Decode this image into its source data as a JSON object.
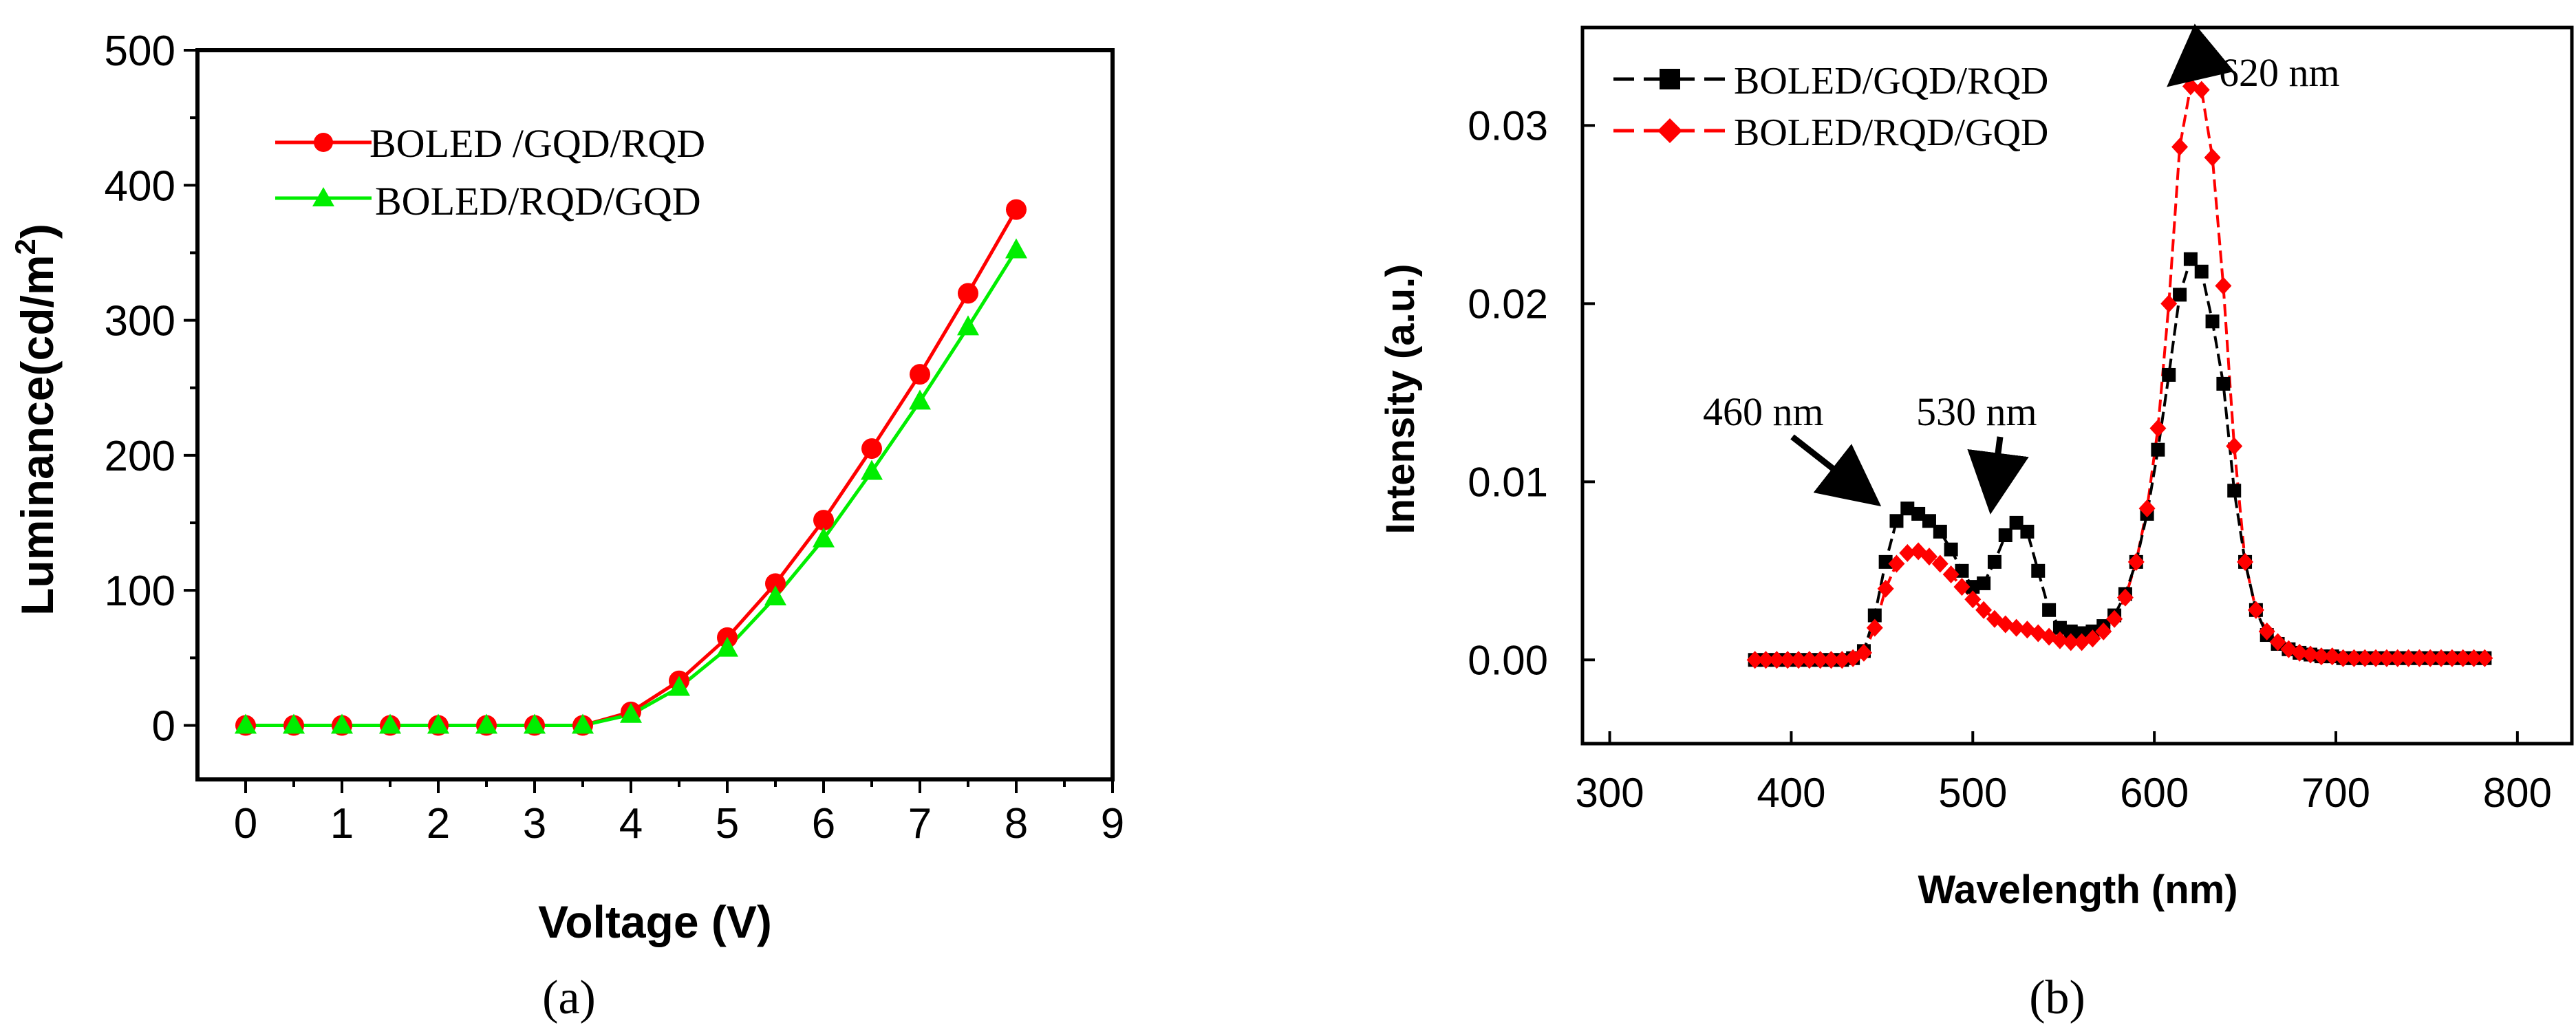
{
  "panels": {
    "a_label": "(a)",
    "b_label": "(b)"
  },
  "colors": {
    "red": "#ff0000",
    "green": "#00ee00",
    "black": "#000000",
    "axis": "#000000"
  },
  "chart_data": [
    {
      "id": "a",
      "type": "line",
      "title": "",
      "xlabel": "Voltage (V)",
      "ylabel": "Luminance(cd/m²)",
      "ylabel_main": "Luminance(cd/m",
      "ylabel_sup": "2",
      "ylabel_close": ")",
      "xlim": [
        -0.5,
        9
      ],
      "ylim": [
        -40,
        500
      ],
      "xticks": [
        0,
        0.5,
        1,
        1.5,
        2,
        2.5,
        3,
        3.5,
        4,
        4.5,
        5,
        5.5,
        6,
        6.5,
        7,
        7.5,
        8,
        8.5,
        9
      ],
      "xtick_labels": [
        "0",
        "1",
        "2",
        "3",
        "4",
        "5",
        "6",
        "7",
        "8",
        "9"
      ],
      "xtick_label_values": [
        0,
        1,
        2,
        3,
        4,
        5,
        6,
        7,
        8,
        9
      ],
      "yticks": [
        0,
        100,
        200,
        300,
        400,
        500
      ],
      "ytick_labels": [
        "0",
        "100",
        "200",
        "300",
        "400",
        "500"
      ],
      "legend_position": "top-left",
      "x": [
        0,
        0.5,
        1,
        1.5,
        2,
        2.5,
        3,
        3.5,
        4,
        4.5,
        5,
        5.5,
        6,
        6.5,
        7,
        7.5,
        8
      ],
      "series": [
        {
          "name": "BOLED /GQD/RQD",
          "marker": "circle",
          "color": "#ff0000",
          "values": [
            0,
            0,
            0,
            0,
            0,
            0,
            0,
            0,
            10,
            33,
            65,
            105,
            152,
            205,
            260,
            320,
            382
          ]
        },
        {
          "name": "BOLED/RQD/GQD",
          "marker": "triangle",
          "color": "#00ee00",
          "values": [
            0,
            0,
            0,
            0,
            0,
            0,
            0,
            0,
            8,
            28,
            57,
            95,
            138,
            188,
            240,
            295,
            352
          ]
        }
      ]
    },
    {
      "id": "b",
      "type": "line",
      "title": "",
      "xlabel": "Wavelength (nm)",
      "ylabel": "Intensity (a.u.)",
      "xlim": [
        285,
        830
      ],
      "ylim": [
        -0.0047,
        0.0355
      ],
      "xticks": [
        300,
        400,
        500,
        600,
        700,
        800
      ],
      "xtick_labels": [
        "300",
        "400",
        "500",
        "600",
        "700",
        "800"
      ],
      "yticks": [
        0,
        0.01,
        0.02,
        0.03
      ],
      "ytick_labels": [
        "0.00",
        "0.01",
        "0.02",
        "0.03"
      ],
      "legend_position": "top-left",
      "x": [
        380,
        386,
        392,
        398,
        404,
        410,
        416,
        422,
        428,
        434,
        440,
        446,
        452,
        458,
        464,
        470,
        476,
        482,
        488,
        494,
        500,
        506,
        512,
        518,
        524,
        530,
        536,
        542,
        548,
        554,
        560,
        566,
        572,
        578,
        584,
        590,
        596,
        602,
        608,
        614,
        620,
        626,
        632,
        638,
        644,
        650,
        656,
        662,
        668,
        674,
        680,
        686,
        692,
        698,
        704,
        710,
        716,
        722,
        728,
        734,
        740,
        746,
        752,
        758,
        764,
        770,
        776,
        782
      ],
      "series": [
        {
          "name": "BOLED/GQD/RQD",
          "marker": "square",
          "color": "#000000",
          "values": [
            0,
            0,
            0,
            0,
            0,
            0,
            0,
            0,
            0,
            0.0001,
            0.0005,
            0.0025,
            0.0055,
            0.0078,
            0.0085,
            0.0082,
            0.0078,
            0.0072,
            0.0062,
            0.005,
            0.0041,
            0.0043,
            0.0055,
            0.007,
            0.0077,
            0.0072,
            0.005,
            0.0028,
            0.0018,
            0.0016,
            0.0015,
            0.0016,
            0.0019,
            0.0025,
            0.0037,
            0.0055,
            0.0082,
            0.0118,
            0.016,
            0.0205,
            0.0225,
            0.0218,
            0.019,
            0.0155,
            0.0095,
            0.0055,
            0.0028,
            0.0014,
            0.0009,
            0.0006,
            0.0004,
            0.0003,
            0.0002,
            0.0002,
            0.0001,
            0.0001,
            0.0001,
            0.0001,
            0.0001,
            0.0001,
            0.0001,
            0.0001,
            0.0001,
            0.0001,
            0.0001,
            0.0001,
            0.0001,
            0.0001
          ]
        },
        {
          "name": "BOLED/RQD/GQD",
          "marker": "diamond",
          "color": "#ff0000",
          "values": [
            0,
            0,
            0,
            0,
            0,
            0,
            0,
            0,
            0,
            0.0001,
            0.0004,
            0.0018,
            0.004,
            0.0054,
            0.006,
            0.0061,
            0.0058,
            0.0054,
            0.0048,
            0.0041,
            0.0034,
            0.0028,
            0.0023,
            0.002,
            0.0018,
            0.0017,
            0.0015,
            0.0013,
            0.0011,
            0.001,
            0.001,
            0.0012,
            0.0016,
            0.0023,
            0.0035,
            0.0055,
            0.0085,
            0.013,
            0.02,
            0.0288,
            0.0322,
            0.032,
            0.0282,
            0.021,
            0.012,
            0.0055,
            0.0028,
            0.0016,
            0.001,
            0.0006,
            0.0004,
            0.0003,
            0.0002,
            0.0002,
            0.0001,
            0.0001,
            0.0001,
            0.0001,
            0.0001,
            0.0001,
            0.0001,
            0.0001,
            0.0001,
            0.0001,
            0.0001,
            0.0001,
            0.0001,
            0.0001
          ]
        }
      ],
      "annotations": [
        {
          "text": "460 nm",
          "x": 462,
          "y": 0.0085
        },
        {
          "text": "530 nm",
          "x": 528,
          "y": 0.0077
        },
        {
          "text": "620 nm",
          "x": 622,
          "y": 0.0322
        }
      ]
    }
  ]
}
